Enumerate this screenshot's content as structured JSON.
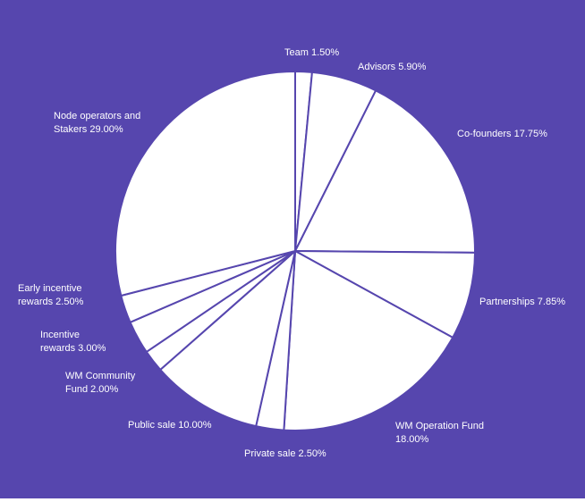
{
  "colors": {
    "background": "#5646ae",
    "slice_fill": "#ffffff",
    "slice_stroke": "#5646ae",
    "label_text": "#ffffff",
    "page": "#ffffff"
  },
  "chart_data": {
    "type": "pie",
    "start_angle_deg": 0,
    "direction": "clockwise",
    "slices": [
      {
        "label": "Team",
        "value": 1.5,
        "display": "Team 1.50%",
        "lines": [
          "Team 1.50%"
        ]
      },
      {
        "label": "Advisors",
        "value": 5.9,
        "display": "Advisors 5.90%",
        "lines": [
          "Advisors 5.90%"
        ]
      },
      {
        "label": "Co-founders",
        "value": 17.75,
        "display": "Co-founders 17.75%",
        "lines": [
          "Co-founders 17.75%"
        ]
      },
      {
        "label": "Partnerships",
        "value": 7.85,
        "display": "Partnerships 7.85%",
        "lines": [
          "Partnerships 7.85%"
        ]
      },
      {
        "label": "WM Operation Fund",
        "value": 18.0,
        "display": "WM Operation Fund 18.00%",
        "lines": [
          "WM Operation Fund",
          "18.00%"
        ]
      },
      {
        "label": "Private sale",
        "value": 2.5,
        "display": "Private sale 2.50%",
        "lines": [
          "Private sale 2.50%"
        ]
      },
      {
        "label": "Public sale",
        "value": 10.0,
        "display": "Public sale 10.00%",
        "lines": [
          "Public sale 10.00%"
        ]
      },
      {
        "label": "WM Community Fund",
        "value": 2.0,
        "display": "WM Community Fund 2.00%",
        "lines": [
          "WM Community",
          "Fund 2.00%"
        ]
      },
      {
        "label": "Incentive rewards",
        "value": 3.0,
        "display": "Incentive rewards 3.00%",
        "lines": [
          "Incentive",
          "rewards 3.00%"
        ]
      },
      {
        "label": "Early incentive rewards",
        "value": 2.5,
        "display": "Early incentive rewards 2.50%",
        "lines": [
          "Early incentive",
          "rewards 2.50%"
        ]
      },
      {
        "label": "Node operators and Stakers",
        "value": 29.0,
        "display": "Node operators and Stakers 29.00%",
        "lines": [
          "Node operators and",
          "Stakers 29.00%"
        ]
      }
    ]
  }
}
